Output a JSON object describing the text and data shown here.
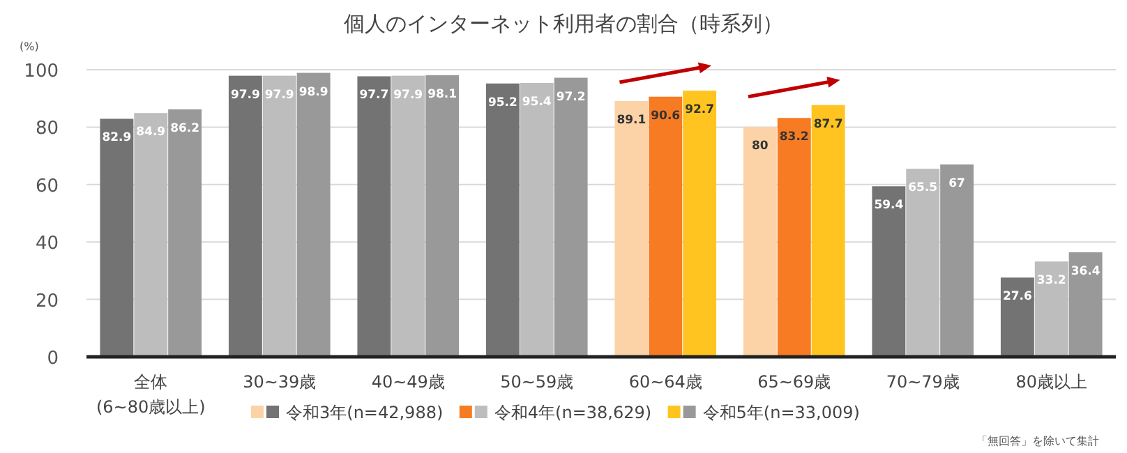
{
  "chart_data": {
    "type": "bar",
    "title": "個人のインターネット利用者の割合（時系列）",
    "ylabel": "(%)",
    "categories": [
      "全体\n(6~80歳以上)",
      "30~39歳",
      "40~49歳",
      "50~59歳",
      "60~64歳",
      "65~69歳",
      "70~79歳",
      "80歳以上"
    ],
    "series": [
      {
        "name": "令和3年(n=42,988)",
        "color": "#737373",
        "colors": [
          "#737373",
          "#737373",
          "#737373",
          "#737373",
          "#fcd3a6",
          "#fcd3a6",
          "#737373",
          "#737373"
        ],
        "values": [
          82.9,
          97.9,
          97.7,
          95.2,
          89.1,
          80,
          59.4,
          27.6
        ]
      },
      {
        "name": "令和4年(n=38,629)",
        "color": "#bdbdbd",
        "colors": [
          "#bdbdbd",
          "#bdbdbd",
          "#bdbdbd",
          "#bdbdbd",
          "#f77b22",
          "#f77b22",
          "#bdbdbd",
          "#bdbdbd"
        ],
        "values": [
          84.9,
          97.9,
          97.9,
          95.4,
          90.6,
          83.2,
          65.5,
          33.2
        ]
      },
      {
        "name": "令和5年(n=33,009)",
        "color": "#999999",
        "colors": [
          "#999999",
          "#999999",
          "#999999",
          "#999999",
          "#ffc41f",
          "#ffc41f",
          "#999999",
          "#999999"
        ],
        "values": [
          86.2,
          98.9,
          98.1,
          97.2,
          92.7,
          87.7,
          67,
          36.4
        ]
      }
    ],
    "ylim": [
      0,
      100
    ],
    "yticks": [
      0,
      20,
      40,
      60,
      80,
      100
    ],
    "grid": "y",
    "data_labels": true,
    "legend": "bottom",
    "annotations": [
      "「無回答」を除いて集計"
    ]
  }
}
